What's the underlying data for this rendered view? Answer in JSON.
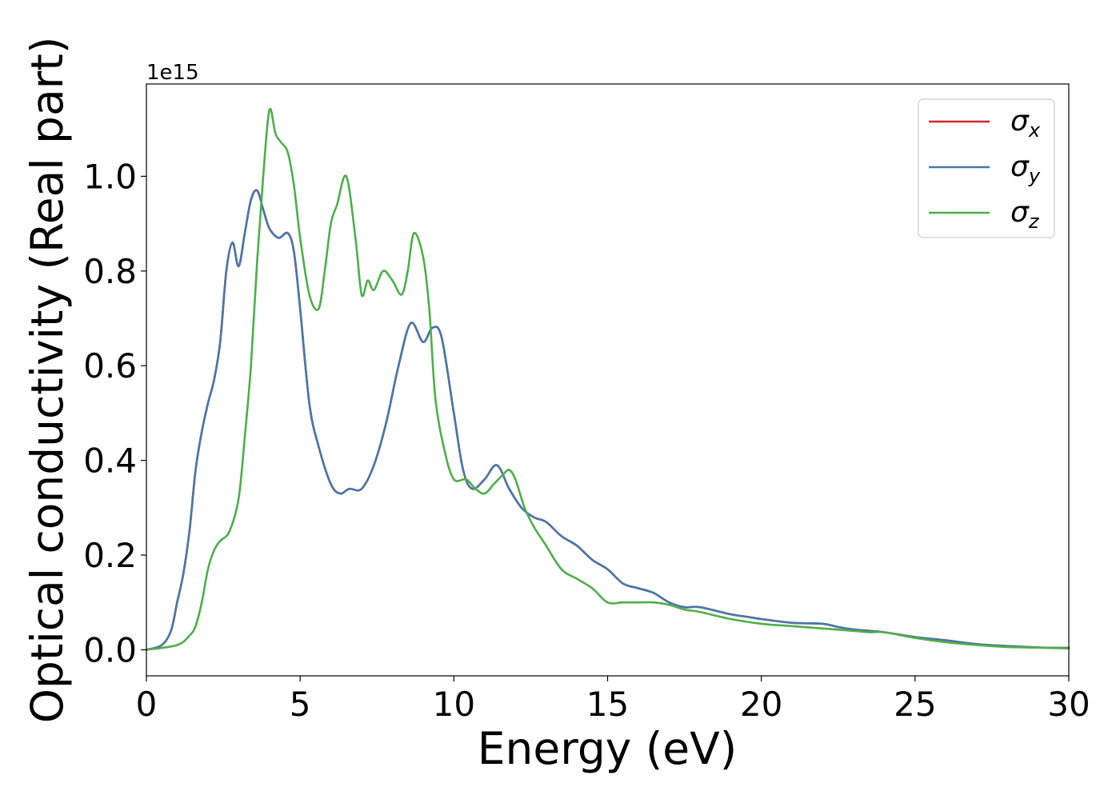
{
  "chart_data": {
    "type": "line",
    "xlabel": "Energy (eV)",
    "ylabel": "Optical conductivity (Real part)",
    "y_offset_label": "1e15",
    "y_scale": 1000000000000000.0,
    "xlim": [
      0,
      30
    ],
    "ylim": [
      -0.055,
      1.195
    ],
    "xticks": [
      0,
      5,
      10,
      15,
      20,
      25,
      30
    ],
    "xtick_labels": [
      "0",
      "5",
      "10",
      "15",
      "20",
      "25",
      "30"
    ],
    "yticks": [
      0.0,
      0.2,
      0.4,
      0.6,
      0.8,
      1.0
    ],
    "ytick_labels": [
      "0.0",
      "0.2",
      "0.4",
      "0.6",
      "0.8",
      "1.0"
    ],
    "grid": false,
    "legend_position": "top-right",
    "series": [
      {
        "name": "σx",
        "symbol": "σ",
        "subscript": "x",
        "color": "#d62728",
        "x": [
          0,
          0.5,
          0.8,
          1.0,
          1.2,
          1.4,
          1.6,
          1.8,
          2.0,
          2.2,
          2.4,
          2.6,
          2.8,
          3.0,
          3.2,
          3.4,
          3.6,
          3.8,
          4.0,
          4.3,
          4.6,
          4.8,
          5.0,
          5.3,
          5.6,
          6.0,
          6.3,
          6.6,
          7.0,
          7.4,
          7.8,
          8.2,
          8.6,
          9.0,
          9.3,
          9.6,
          10.0,
          10.3,
          10.6,
          11.0,
          11.4,
          11.8,
          12.2,
          12.6,
          13.0,
          13.5,
          14.0,
          14.5,
          15.0,
          15.5,
          16.0,
          16.5,
          17.0,
          17.5,
          18.0,
          19.0,
          19.5,
          20.0,
          21.0,
          22.0,
          22.5,
          23.0,
          24.0,
          25.0,
          26.0,
          27.0,
          28.0,
          29.0,
          30.0
        ],
        "y": [
          0.0,
          0.01,
          0.04,
          0.1,
          0.16,
          0.25,
          0.38,
          0.46,
          0.52,
          0.57,
          0.65,
          0.8,
          0.86,
          0.81,
          0.88,
          0.95,
          0.97,
          0.93,
          0.89,
          0.87,
          0.88,
          0.84,
          0.72,
          0.52,
          0.43,
          0.35,
          0.33,
          0.34,
          0.34,
          0.39,
          0.48,
          0.6,
          0.69,
          0.65,
          0.68,
          0.66,
          0.5,
          0.38,
          0.34,
          0.36,
          0.39,
          0.34,
          0.3,
          0.28,
          0.27,
          0.24,
          0.22,
          0.19,
          0.17,
          0.14,
          0.13,
          0.12,
          0.1,
          0.09,
          0.09,
          0.075,
          0.07,
          0.065,
          0.057,
          0.055,
          0.048,
          0.043,
          0.037,
          0.027,
          0.02,
          0.012,
          0.008,
          0.005,
          0.004
        ]
      },
      {
        "name": "σy",
        "symbol": "σ",
        "subscript": "y",
        "color": "#4878a8",
        "x": [
          0,
          0.5,
          0.8,
          1.0,
          1.2,
          1.4,
          1.6,
          1.8,
          2.0,
          2.2,
          2.4,
          2.6,
          2.8,
          3.0,
          3.2,
          3.4,
          3.6,
          3.8,
          4.0,
          4.3,
          4.6,
          4.8,
          5.0,
          5.3,
          5.6,
          6.0,
          6.3,
          6.6,
          7.0,
          7.4,
          7.8,
          8.2,
          8.6,
          9.0,
          9.3,
          9.6,
          10.0,
          10.3,
          10.6,
          11.0,
          11.4,
          11.8,
          12.2,
          12.6,
          13.0,
          13.5,
          14.0,
          14.5,
          15.0,
          15.5,
          16.0,
          16.5,
          17.0,
          17.5,
          18.0,
          19.0,
          19.5,
          20.0,
          21.0,
          22.0,
          22.5,
          23.0,
          24.0,
          25.0,
          26.0,
          27.0,
          28.0,
          29.0,
          30.0
        ],
        "y": [
          0.0,
          0.01,
          0.04,
          0.1,
          0.16,
          0.25,
          0.38,
          0.46,
          0.52,
          0.57,
          0.65,
          0.8,
          0.86,
          0.81,
          0.88,
          0.95,
          0.97,
          0.93,
          0.89,
          0.87,
          0.88,
          0.84,
          0.72,
          0.52,
          0.43,
          0.35,
          0.33,
          0.34,
          0.34,
          0.39,
          0.48,
          0.6,
          0.69,
          0.65,
          0.68,
          0.66,
          0.5,
          0.38,
          0.34,
          0.36,
          0.39,
          0.34,
          0.3,
          0.28,
          0.27,
          0.24,
          0.22,
          0.19,
          0.17,
          0.14,
          0.13,
          0.12,
          0.1,
          0.09,
          0.09,
          0.075,
          0.07,
          0.065,
          0.057,
          0.055,
          0.048,
          0.043,
          0.037,
          0.027,
          0.02,
          0.012,
          0.008,
          0.005,
          0.004
        ]
      },
      {
        "name": "σz",
        "symbol": "σ",
        "subscript": "z",
        "color": "#4daf4a",
        "x": [
          0,
          1.0,
          1.4,
          1.6,
          1.8,
          2.0,
          2.2,
          2.4,
          2.7,
          3.0,
          3.2,
          3.4,
          3.6,
          3.8,
          4.0,
          4.2,
          4.4,
          4.6,
          4.8,
          5.0,
          5.3,
          5.6,
          5.8,
          6.0,
          6.2,
          6.5,
          6.8,
          7.0,
          7.2,
          7.4,
          7.7,
          8.0,
          8.3,
          8.5,
          8.7,
          9.0,
          9.2,
          9.4,
          9.7,
          10.0,
          10.4,
          10.7,
          11.0,
          11.3,
          11.6,
          11.8,
          12.0,
          12.3,
          12.6,
          13.0,
          13.5,
          14.0,
          14.5,
          15.0,
          15.5,
          16.0,
          16.5,
          17.0,
          17.5,
          18.0,
          19.0,
          20.0,
          21.0,
          22.0,
          23.0,
          23.5,
          24.0,
          25.0,
          26.0,
          27.0,
          28.0,
          30.0
        ],
        "y": [
          0.0,
          0.01,
          0.03,
          0.05,
          0.1,
          0.17,
          0.21,
          0.23,
          0.25,
          0.32,
          0.45,
          0.6,
          0.82,
          1.0,
          1.14,
          1.09,
          1.07,
          1.05,
          0.98,
          0.87,
          0.75,
          0.72,
          0.8,
          0.9,
          0.94,
          1.0,
          0.87,
          0.75,
          0.78,
          0.76,
          0.8,
          0.78,
          0.75,
          0.8,
          0.88,
          0.83,
          0.72,
          0.53,
          0.42,
          0.36,
          0.36,
          0.34,
          0.33,
          0.35,
          0.37,
          0.38,
          0.36,
          0.3,
          0.26,
          0.22,
          0.17,
          0.15,
          0.13,
          0.1,
          0.1,
          0.1,
          0.1,
          0.095,
          0.085,
          0.08,
          0.065,
          0.055,
          0.05,
          0.045,
          0.04,
          0.037,
          0.037,
          0.025,
          0.016,
          0.01,
          0.006,
          0.003
        ]
      }
    ]
  }
}
